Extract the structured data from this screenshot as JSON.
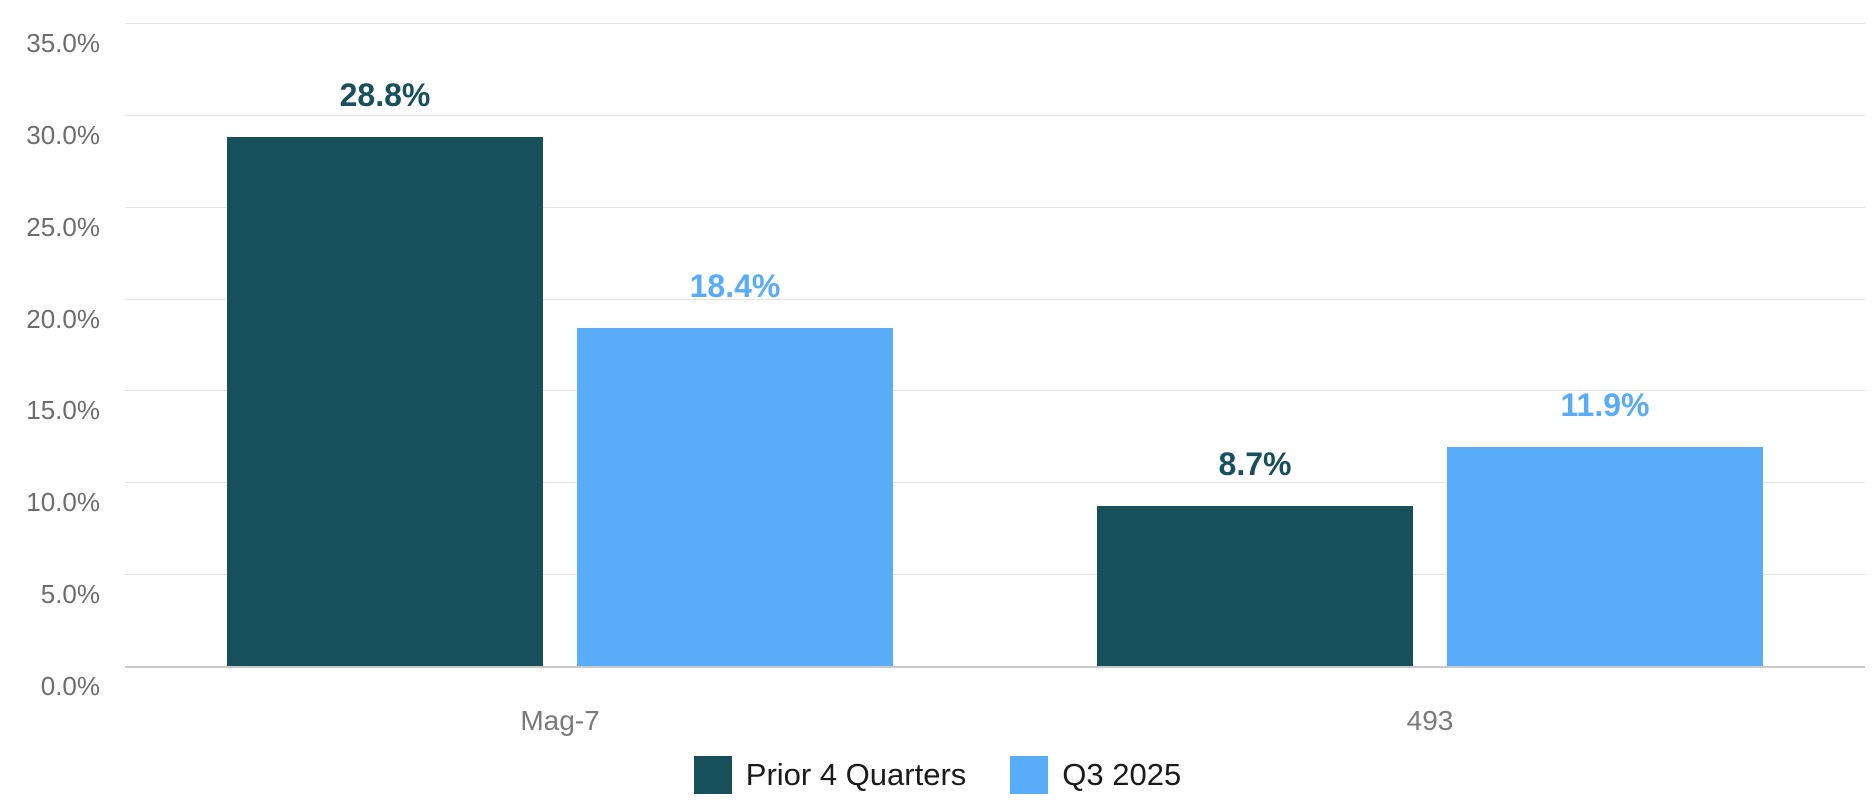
{
  "chart_data": {
    "type": "bar",
    "title": "",
    "categories": [
      "Mag-7",
      "493"
    ],
    "series": [
      {
        "name": "Prior 4 Quarters",
        "color": "#174F5A",
        "values": [
          28.8,
          8.7
        ],
        "value_labels": [
          "28.8%",
          "8.7%"
        ]
      },
      {
        "name": "Q3 2025",
        "color": "#59ACF7",
        "values": [
          18.4,
          11.9
        ],
        "value_labels": [
          "18.4%",
          "11.9%"
        ]
      }
    ],
    "ylim": [
      0,
      35
    ],
    "ytick_step": 5,
    "yticks": [
      {
        "value": 0,
        "label": "0.0%"
      },
      {
        "value": 5,
        "label": "5.0%"
      },
      {
        "value": 10,
        "label": "10.0%"
      },
      {
        "value": 15,
        "label": "15.0%"
      },
      {
        "value": 20,
        "label": "20.0%"
      },
      {
        "value": 25,
        "label": "25.0%"
      },
      {
        "value": 30,
        "label": "30.0%"
      },
      {
        "value": 35,
        "label": "35.0%"
      }
    ],
    "grid": "horizontal",
    "legend_position": "bottom-center"
  },
  "colors": {
    "background": "#ffffff",
    "gridline": "#e4e4e4",
    "axis_line": "#c9c9c9",
    "tick_label": "#6d6d6d",
    "category_label": "#7a7a7a",
    "legend_text": "#1a1a1a"
  }
}
